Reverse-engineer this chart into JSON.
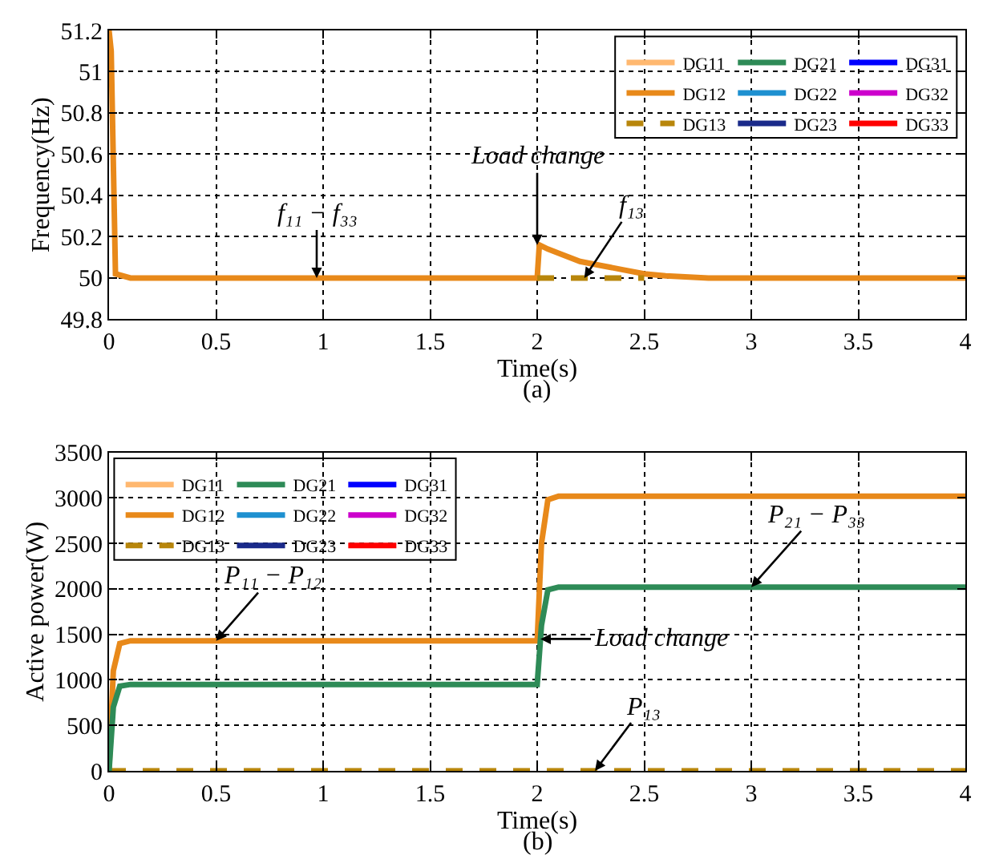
{
  "chart_data": [
    {
      "type": "line",
      "xlabel": "Time(s)",
      "ylabel": "Frequency(Hz)",
      "xlim": [
        0,
        4
      ],
      "xticks": [
        0,
        0.5,
        1,
        1.5,
        2,
        2.5,
        3,
        3.5,
        4
      ],
      "ylim": [
        49.8,
        51.2
      ],
      "yticks": [
        49.8,
        50,
        50.2,
        50.4,
        50.6,
        50.8,
        51,
        51.2
      ],
      "grid": true,
      "legend": "top right",
      "x": [
        0,
        0.01,
        0.03,
        0.1,
        2.0,
        2.01,
        2.05,
        2.1,
        2.2,
        2.3,
        2.4,
        2.5,
        2.6,
        2.8,
        4
      ],
      "series": [
        {
          "name": "DG11",
          "color": "#ffb870",
          "values": [
            null,
            null,
            null,
            null,
            null,
            null,
            null,
            null,
            null,
            null,
            null,
            null,
            null,
            null,
            null
          ]
        },
        {
          "name": "DG12",
          "color": "#e8891a",
          "values": [
            51.2,
            51.1,
            50.02,
            50.0,
            50.0,
            50.16,
            50.14,
            50.12,
            50.08,
            50.06,
            50.04,
            50.02,
            50.01,
            50.0,
            50.0
          ]
        },
        {
          "name": "DG13",
          "color": "#b8860b",
          "line_style": "dashed",
          "values": [
            null,
            null,
            null,
            null,
            50.0,
            50.0,
            50.0,
            50.0,
            50.0,
            50.0,
            50.0,
            50.0,
            null,
            null,
            null
          ]
        },
        {
          "name": "DG21",
          "color": "#2e8b57",
          "values": [
            null,
            null,
            null,
            null,
            null,
            null,
            null,
            null,
            null,
            null,
            null,
            null,
            null,
            null,
            null
          ]
        },
        {
          "name": "DG22",
          "color": "#1e90d0",
          "values": [
            null,
            null,
            null,
            null,
            null,
            null,
            null,
            null,
            null,
            null,
            null,
            null,
            null,
            null,
            null
          ]
        },
        {
          "name": "DG23",
          "color": "#1a2a8a",
          "values": [
            null,
            null,
            null,
            null,
            null,
            null,
            null,
            null,
            null,
            null,
            null,
            null,
            null,
            null,
            null
          ]
        },
        {
          "name": "DG31",
          "color": "#0000ff",
          "values": [
            null,
            null,
            null,
            null,
            null,
            null,
            null,
            null,
            null,
            null,
            null,
            null,
            null,
            null,
            null
          ]
        },
        {
          "name": "DG32",
          "color": "#cc00cc",
          "values": [
            null,
            null,
            null,
            null,
            null,
            null,
            null,
            null,
            null,
            null,
            null,
            null,
            null,
            null,
            null
          ]
        },
        {
          "name": "DG33",
          "color": "#ff0000",
          "values": [
            null,
            null,
            null,
            null,
            null,
            null,
            null,
            null,
            null,
            null,
            null,
            null,
            null,
            null,
            null
          ]
        }
      ],
      "annotations": [
        {
          "text": "f₁₁ − f₃₃",
          "x": 0.97,
          "y": 50.0
        },
        {
          "text": "Load change",
          "x": 2.0,
          "y": 50.16
        },
        {
          "text": "f₁₃",
          "x": 2.22,
          "y": 50.0
        },
        "(a)"
      ]
    },
    {
      "type": "line",
      "xlabel": "Time(s)",
      "ylabel": "Active power(W)",
      "xlim": [
        0,
        4
      ],
      "xticks": [
        0,
        0.5,
        1,
        1.5,
        2,
        2.5,
        3,
        3.5,
        4
      ],
      "ylim": [
        0,
        3500
      ],
      "yticks": [
        0,
        500,
        1000,
        1500,
        2000,
        2500,
        3000,
        3500
      ],
      "grid": true,
      "legend": "top left",
      "x": [
        0,
        0.02,
        0.05,
        0.1,
        2.0,
        2.02,
        2.05,
        2.1,
        4
      ],
      "series": [
        {
          "name": "DG11",
          "color": "#ffb870",
          "values": [
            null,
            null,
            null,
            null,
            null,
            null,
            null,
            null,
            null
          ]
        },
        {
          "name": "DG12",
          "color": "#e8891a",
          "values": [
            0,
            1100,
            1400,
            1430,
            1430,
            2500,
            2980,
            3020,
            3020
          ]
        },
        {
          "name": "DG13",
          "color": "#b8860b",
          "line_style": "dashed",
          "values": [
            0,
            0,
            0,
            0,
            0,
            0,
            0,
            0,
            0
          ]
        },
        {
          "name": "DG21",
          "color": "#2e8b57",
          "values": [
            0,
            700,
            930,
            950,
            950,
            1600,
            1990,
            2020,
            2020
          ]
        },
        {
          "name": "DG22",
          "color": "#1e90d0",
          "values": [
            null,
            null,
            null,
            null,
            null,
            null,
            null,
            null,
            null
          ]
        },
        {
          "name": "DG23",
          "color": "#1a2a8a",
          "values": [
            null,
            null,
            null,
            null,
            null,
            null,
            null,
            null,
            null
          ]
        },
        {
          "name": "DG31",
          "color": "#0000ff",
          "values": [
            null,
            null,
            null,
            null,
            null,
            null,
            null,
            null,
            null
          ]
        },
        {
          "name": "DG32",
          "color": "#cc00cc",
          "values": [
            null,
            null,
            null,
            null,
            null,
            null,
            null,
            null,
            null
          ]
        },
        {
          "name": "DG33",
          "color": "#ff0000",
          "values": [
            null,
            null,
            null,
            null,
            null,
            null,
            null,
            null,
            null
          ]
        }
      ],
      "annotations": [
        {
          "text": "P₁₁ − P₁₂",
          "x": 0.5,
          "y": 1430
        },
        {
          "text": "P₂₁ − P₃₃",
          "x": 3.0,
          "y": 2020
        },
        {
          "text": "Load change",
          "x": 2.015,
          "y": 1450
        },
        {
          "text": "P₁₃",
          "x": 2.27,
          "y": 0
        },
        "(b)"
      ]
    }
  ]
}
